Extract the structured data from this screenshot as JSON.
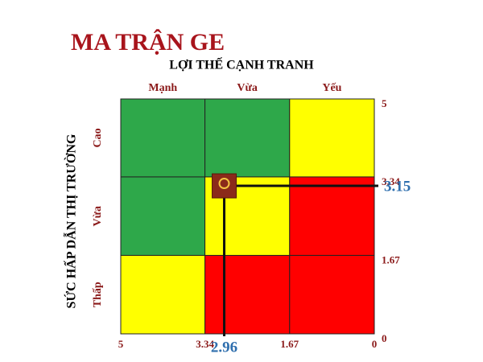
{
  "chart_data": {
    "type": "scatter",
    "title": "MA TRẬN GE",
    "x_label": "LỢI THẾ CẠNH TRANH",
    "y_label": "SỨC HẤP DẪN THỊ TRƯỜNG",
    "column_labels": [
      "Mạnh",
      "Vừa",
      "Yếu"
    ],
    "row_labels": [
      "Cao",
      "Vừa",
      "Thấp"
    ],
    "cell_colors": [
      [
        "#2ea84a",
        "#2ea84a",
        "#ffff00"
      ],
      [
        "#2ea84a",
        "#ffff00",
        "#ff0000"
      ],
      [
        "#ffff00",
        "#ff0000",
        "#ff0000"
      ]
    ],
    "xlim": [
      5,
      0
    ],
    "ylim": [
      0,
      5
    ],
    "xticks": [
      5,
      3.34,
      1.67,
      0
    ],
    "yticks": [
      0,
      1.67,
      3.34,
      5
    ],
    "x": [
      2.96
    ],
    "series": [
      {
        "values": [
          3.15
        ],
        "color": "#8b2a1a"
      }
    ]
  }
}
